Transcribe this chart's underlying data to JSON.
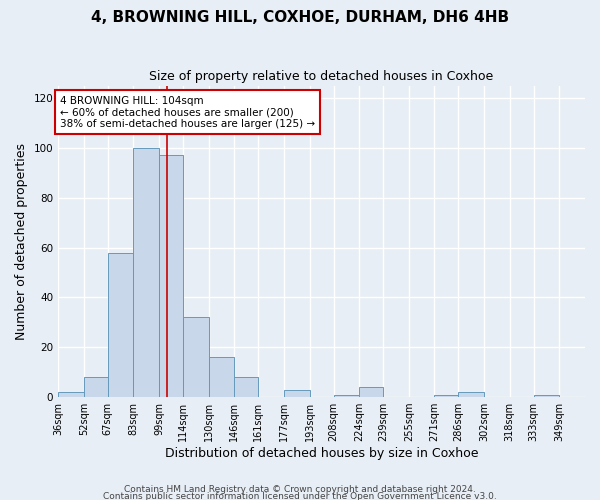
{
  "title": "4, BROWNING HILL, COXHOE, DURHAM, DH6 4HB",
  "subtitle": "Size of property relative to detached houses in Coxhoe",
  "xlabel": "Distribution of detached houses by size in Coxhoe",
  "ylabel": "Number of detached properties",
  "bin_labels": [
    "36sqm",
    "52sqm",
    "67sqm",
    "83sqm",
    "99sqm",
    "114sqm",
    "130sqm",
    "146sqm",
    "161sqm",
    "177sqm",
    "193sqm",
    "208sqm",
    "224sqm",
    "239sqm",
    "255sqm",
    "271sqm",
    "286sqm",
    "302sqm",
    "318sqm",
    "333sqm",
    "349sqm"
  ],
  "bin_edges": [
    36,
    52,
    67,
    83,
    99,
    114,
    130,
    146,
    161,
    177,
    193,
    208,
    224,
    239,
    255,
    271,
    286,
    302,
    318,
    333,
    349
  ],
  "counts": [
    2,
    8,
    58,
    100,
    97,
    32,
    16,
    8,
    0,
    3,
    0,
    1,
    4,
    0,
    0,
    1,
    2,
    0,
    0,
    1
  ],
  "bar_color": "#c8d8ea",
  "bar_edge_color": "#6699bb",
  "vline_x": 104,
  "vline_color": "#cc0000",
  "annotation_title": "4 BROWNING HILL: 104sqm",
  "annotation_line1": "← 60% of detached houses are smaller (200)",
  "annotation_line2": "38% of semi-detached houses are larger (125) →",
  "annotation_box_color": "white",
  "annotation_box_edge": "#cc0000",
  "ylim": [
    0,
    125
  ],
  "yticks": [
    0,
    20,
    40,
    60,
    80,
    100,
    120
  ],
  "background_color": "#e8eef5",
  "grid_color": "white",
  "footer1": "Contains HM Land Registry data © Crown copyright and database right 2024.",
  "footer2": "Contains public sector information licensed under the Open Government Licence v3.0."
}
